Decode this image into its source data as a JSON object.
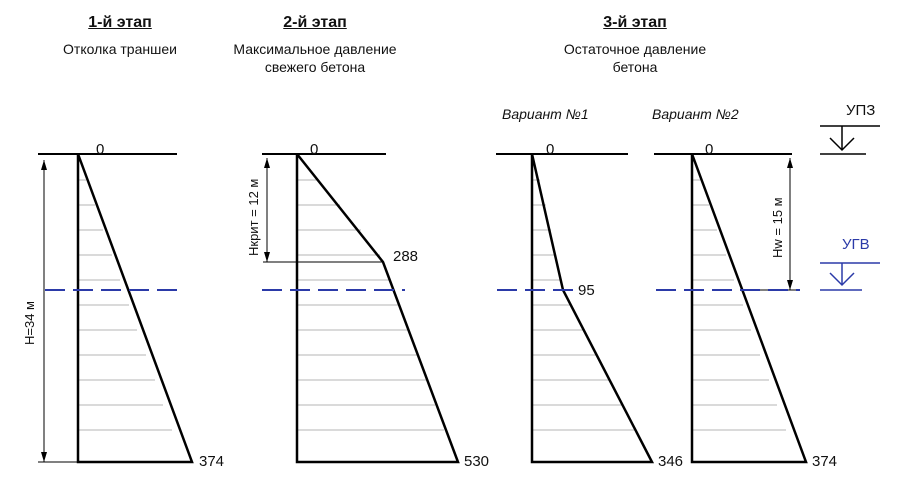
{
  "stages": [
    {
      "title": "1-й этап",
      "subtitle": [
        "Отколка траншеи"
      ]
    },
    {
      "title": "2-й этап",
      "subtitle": [
        "Максимальное давление",
        "свежего бетона"
      ]
    },
    {
      "title": "3-й этап",
      "subtitle": [
        "Остаточное давление",
        "бетона"
      ]
    }
  ],
  "variants": [
    "Вариант №1",
    "Вариант №2"
  ],
  "markers": {
    "ups": "УПЗ",
    "ugv": "УГВ"
  },
  "dimensions": {
    "H": "Н=34 м",
    "Hcrit": "Нкрит = 12 м",
    "Hw": "Нw = 15 м"
  },
  "diagrams": {
    "d1": {
      "top": "0",
      "bottom": "374"
    },
    "d2": {
      "top": "0",
      "mid": "288",
      "bottom": "530"
    },
    "d3": {
      "top": "0",
      "mid": "95",
      "bottom": "346"
    },
    "d4": {
      "top": "0",
      "bottom": "374"
    }
  },
  "colors": {
    "line": "#000000",
    "hatch": "#b0b0b0",
    "water": "#2b3aa8"
  }
}
